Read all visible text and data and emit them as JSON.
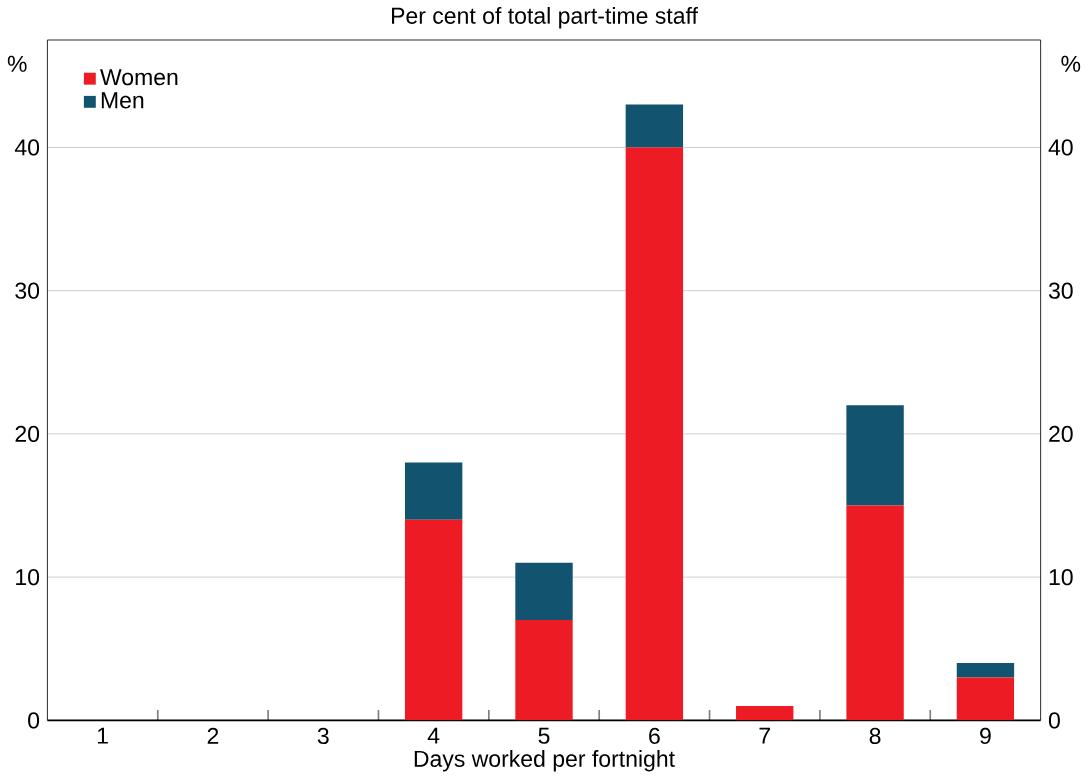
{
  "chart_data": {
    "type": "bar",
    "stacked": true,
    "title": "Per cent of total part-time staff",
    "xlabel": "Days worked per fortnight",
    "ylabel": "%",
    "y2label": "%",
    "categories": [
      "1",
      "2",
      "3",
      "4",
      "5",
      "6",
      "7",
      "8",
      "9"
    ],
    "series": [
      {
        "name": "Women",
        "color": "#ed1c24",
        "values": [
          0,
          0,
          0,
          14,
          7,
          40,
          1,
          15,
          3
        ]
      },
      {
        "name": "Men",
        "color": "#12536f",
        "values": [
          0,
          0,
          0,
          4,
          4,
          3,
          0,
          7,
          1
        ]
      }
    ],
    "ylim": [
      0,
      47.5
    ],
    "yticks": [
      0,
      10,
      20,
      30,
      40
    ],
    "y2lim": [
      0,
      47.5
    ],
    "y2ticks": [
      0,
      10,
      20,
      30,
      40
    ],
    "grid": "y",
    "legend": "top left"
  }
}
